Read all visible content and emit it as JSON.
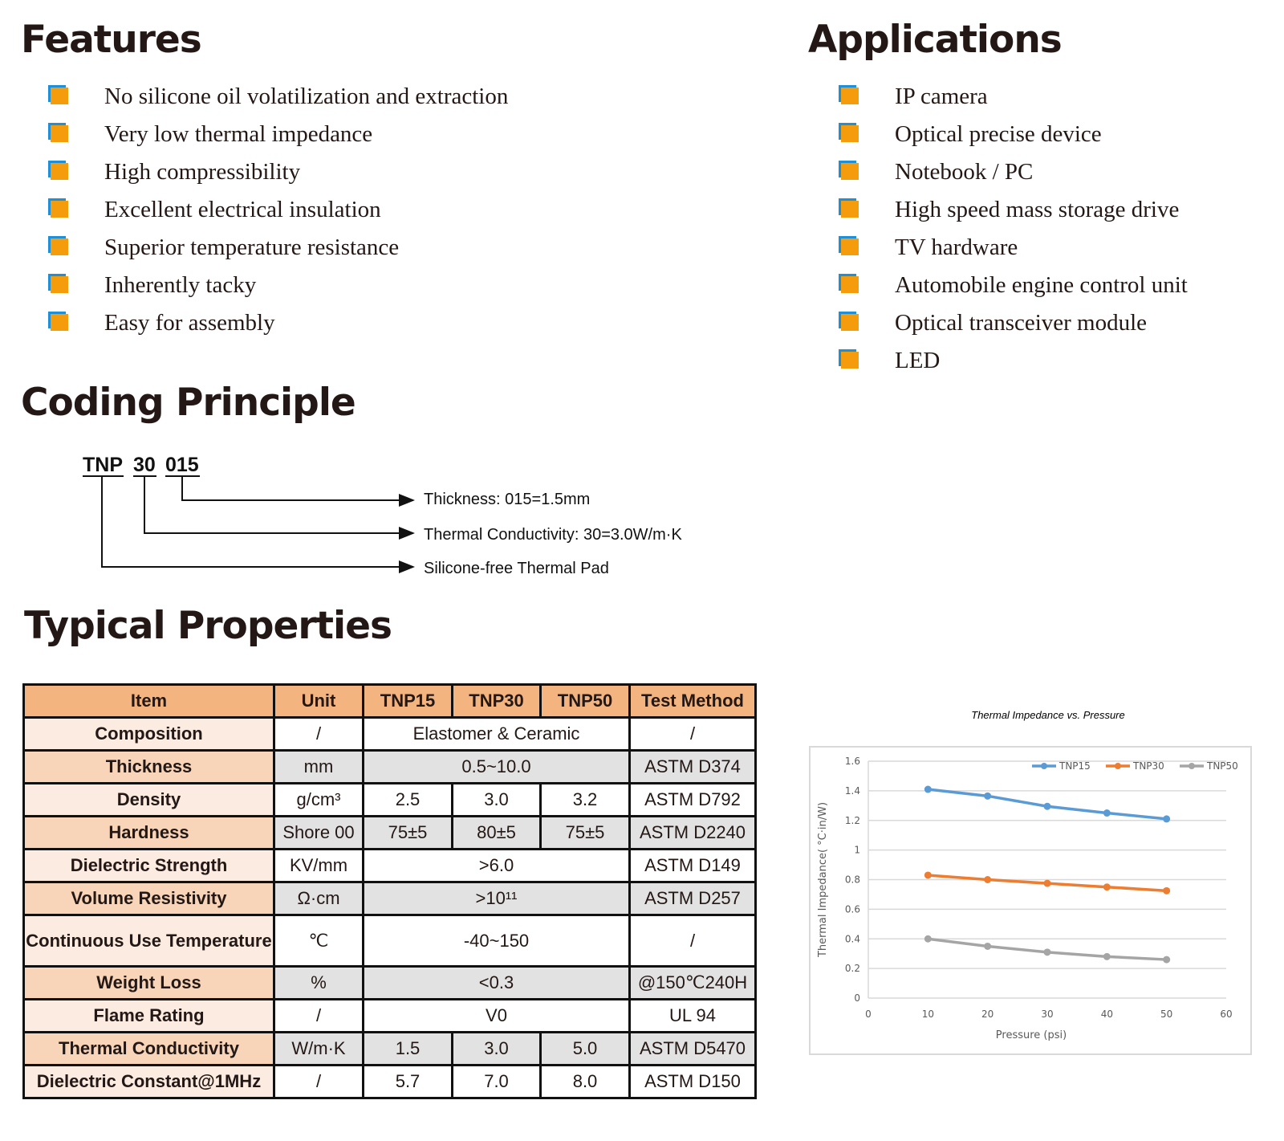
{
  "features": {
    "title": "Features",
    "items": [
      "No silicone oil volatilization and extraction",
      "Very low thermal impedance",
      "High compressibility",
      "Excellent electrical insulation",
      "Superior temperature resistance",
      "Inherently tacky",
      "Easy for assembly"
    ]
  },
  "applications": {
    "title": "Applications",
    "items": [
      "IP camera",
      "Optical precise device",
      "Notebook / PC",
      "High speed mass storage drive",
      "TV hardware",
      "Automobile engine control unit",
      "Optical transceiver module",
      "LED"
    ]
  },
  "coding": {
    "title": "Coding Principle",
    "parts": [
      "TNP",
      "30",
      "015"
    ],
    "labels": [
      "Thickness: 015=1.5mm",
      "Thermal Conductivity: 30=3.0W/m·K",
      "Silicone-free Thermal Pad"
    ]
  },
  "properties": {
    "title": "Typical Properties",
    "headers": [
      "Item",
      "Unit",
      "TNP15",
      "TNP30",
      "TNP50",
      "Test Method"
    ],
    "rows": [
      {
        "item": "Composition",
        "unit": "/",
        "values": [
          "Elastomer & Ceramic"
        ],
        "method": "/"
      },
      {
        "item": "Thickness",
        "unit": "mm",
        "values": [
          "0.5~10.0"
        ],
        "method": "ASTM D374"
      },
      {
        "item": "Density",
        "unit": "g/cm³",
        "values": [
          "2.5",
          "3.0",
          "3.2"
        ],
        "method": "ASTM D792"
      },
      {
        "item": "Hardness",
        "unit": "Shore 00",
        "values": [
          "75±5",
          "80±5",
          "75±5"
        ],
        "method": "ASTM D2240"
      },
      {
        "item": "Dielectric Strength",
        "unit": "KV/mm",
        "values": [
          ">6.0"
        ],
        "method": "ASTM D149"
      },
      {
        "item": "Volume Resistivity",
        "unit": "Ω·cm",
        "values": [
          ">10¹¹"
        ],
        "method": "ASTM D257"
      },
      {
        "item": "Continuous Use Temperature",
        "unit": "℃",
        "values": [
          "-40~150"
        ],
        "method": "/"
      },
      {
        "item": "Weight Loss",
        "unit": "%",
        "values": [
          "<0.3"
        ],
        "method": "@150℃240H"
      },
      {
        "item": "Flame Rating",
        "unit": "/",
        "values": [
          "V0"
        ],
        "method": "UL 94"
      },
      {
        "item": "Thermal Conductivity",
        "unit": "W/m·K",
        "values": [
          "1.5",
          "3.0",
          "5.0"
        ],
        "method": "ASTM D5470"
      },
      {
        "item": "Dielectric Constant@1MHz",
        "unit": "/",
        "values": [
          "5.7",
          "7.0",
          "8.0"
        ],
        "method": "ASTM D150"
      }
    ]
  },
  "chart_data": {
    "type": "line",
    "title": "Thermal Impedance vs. Pressure",
    "xlabel": "Pressure (psi)",
    "ylabel": "Thermal Impedance( °C·in/W)",
    "xlim": [
      0,
      60
    ],
    "ylim": [
      0,
      1.6
    ],
    "xticks": [
      0,
      10,
      20,
      30,
      40,
      50,
      60
    ],
    "yticks": [
      0,
      0.2,
      0.4,
      0.6,
      0.8,
      1,
      1.2,
      1.4,
      1.6
    ],
    "grid": true,
    "legend": "top-right",
    "x": [
      10,
      20,
      30,
      40,
      50
    ],
    "series": [
      {
        "name": "TNP15",
        "color": "#5b9bd5",
        "values": [
          1.41,
          1.365,
          1.295,
          1.25,
          1.21
        ]
      },
      {
        "name": "TNP30",
        "color": "#ed7d31",
        "values": [
          0.83,
          0.8,
          0.775,
          0.75,
          0.725
        ]
      },
      {
        "name": "TNP50",
        "color": "#a5a5a5",
        "values": [
          0.4,
          0.35,
          0.31,
          0.28,
          0.26
        ]
      }
    ]
  },
  "colors": {
    "bullet_front": "#f59c0c",
    "bullet_back": "#1f8fd8",
    "table_header": "#f4b47f"
  }
}
